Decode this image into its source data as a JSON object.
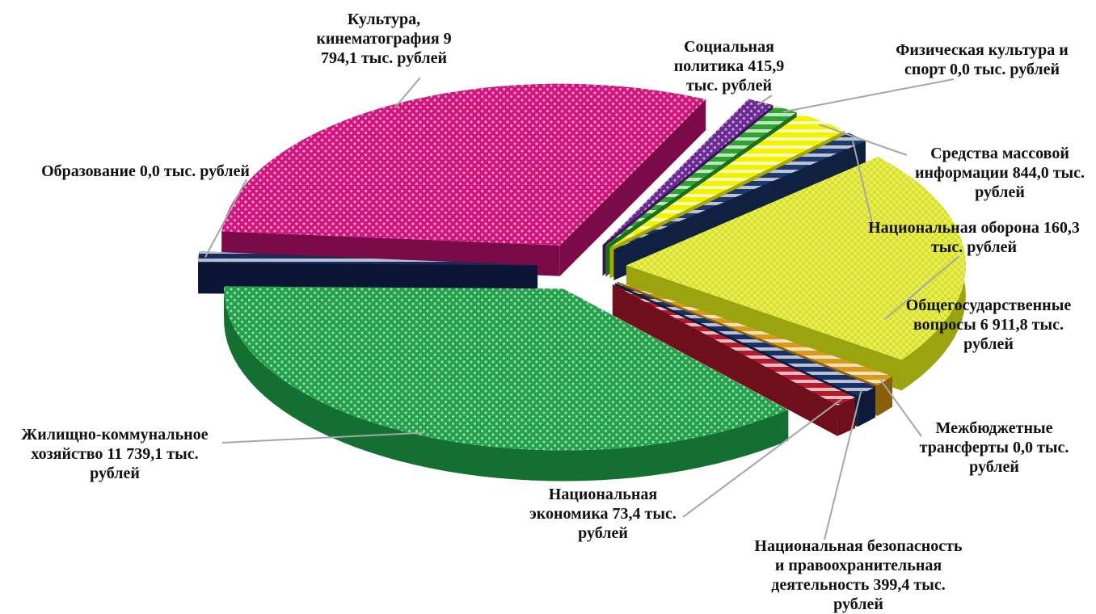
{
  "chart_data": {
    "type": "pie",
    "style": "3d-exploded",
    "unit": "тыс. рублей",
    "slices": [
      {
        "key": "culture",
        "name": "Культура, кинематография",
        "value": 9794.1,
        "display": "9 794,1",
        "label": "Культура,\nкинематография 9\n794,1 тыс. рублей",
        "color": "#d0157f",
        "side": "#7a0b48"
      },
      {
        "key": "social",
        "name": "Социальная политика",
        "value": 415.9,
        "display": "415,9",
        "label": "Социальная\nполитика 415,9\nтыс. рублей",
        "color": "#6b2a93",
        "side": "#3c1456"
      },
      {
        "key": "sport",
        "name": "Физическая культура и спорт",
        "value": 0.0,
        "display": "0,0",
        "label": "Физическая культура и\nспорт 0,0 тыс. рублей",
        "color": "#2fa32f",
        "side": "#1b6e1b"
      },
      {
        "key": "media",
        "name": "Средства массовой информации",
        "value": 844.0,
        "display": "844,0",
        "label": "Средства массовой\nинформации 844,0 тыс.\nрублей",
        "color": "#f2f200",
        "side": "#a8a800"
      },
      {
        "key": "defense",
        "name": "Национальная оборона",
        "value": 160.3,
        "display": "160,3",
        "label": "Национальная оборона 160,3\nтыс. рублей",
        "color": "#1d3a6e",
        "side": "#0f2040"
      },
      {
        "key": "general",
        "name": "Общегосударственные вопросы",
        "value": 6911.8,
        "display": "6 911,8",
        "label": "Общегосударственные\nвопросы 6 911,8 тыс.\nрублей",
        "color": "#d9e21a",
        "side": "#9aa40e"
      },
      {
        "key": "transfers",
        "name": "Межбюджетные трансферты",
        "value": 0.0,
        "display": "0,0",
        "label": "Межбюджетные\nтрансферты 0,0 тыс.\nрублей",
        "color": "#d79a1b",
        "side": "#8a5f0c"
      },
      {
        "key": "security",
        "name": "Национальная безопасность и правоохранительная деятельность",
        "value": 399.4,
        "display": "399,4",
        "label": "Национальная безопасность\nи правоохранительная\nдеятельность 399,4 тыс.\nрублей",
        "color": "#1a2f66",
        "side": "#0d1a3a"
      },
      {
        "key": "economy",
        "name": "Национальная экономика",
        "value": 73.4,
        "display": "73,4",
        "label": "Национальная\nэкономика 73,4 тыс.\nрублей",
        "color": "#b01c2e",
        "side": "#6e0f1b"
      },
      {
        "key": "housing",
        "name": "Жилищно-коммунальное хозяйство",
        "value": 11739.1,
        "display": "11 739,1",
        "label": "Жилищно-коммунальное\nхозяйство 11 739,1 тыс.\nрублей",
        "color": "#22a24a",
        "side": "#137032"
      },
      {
        "key": "education",
        "name": "Образование",
        "value": 0.0,
        "display": "0,0",
        "label": "Образование 0,0 тыс. рублей",
        "color": "#1b2a5c",
        "side": "#0c1535"
      }
    ]
  }
}
